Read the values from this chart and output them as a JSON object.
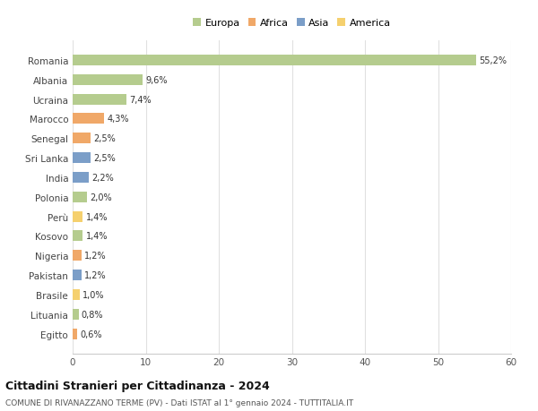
{
  "countries": [
    "Romania",
    "Albania",
    "Ucraina",
    "Marocco",
    "Senegal",
    "Sri Lanka",
    "India",
    "Polonia",
    "Perù",
    "Kosovo",
    "Nigeria",
    "Pakistan",
    "Brasile",
    "Lituania",
    "Egitto"
  ],
  "values": [
    55.2,
    9.6,
    7.4,
    4.3,
    2.5,
    2.5,
    2.2,
    2.0,
    1.4,
    1.4,
    1.2,
    1.2,
    1.0,
    0.8,
    0.6
  ],
  "labels": [
    "55,2%",
    "9,6%",
    "7,4%",
    "4,3%",
    "2,5%",
    "2,5%",
    "2,2%",
    "2,0%",
    "1,4%",
    "1,4%",
    "1,2%",
    "1,2%",
    "1,0%",
    "0,8%",
    "0,6%"
  ],
  "colors": [
    "#b5cc8e",
    "#b5cc8e",
    "#b5cc8e",
    "#f0a868",
    "#f0a868",
    "#7b9ec8",
    "#7b9ec8",
    "#b5cc8e",
    "#f5d06e",
    "#b5cc8e",
    "#f0a868",
    "#7b9ec8",
    "#f5d06e",
    "#b5cc8e",
    "#f0a868"
  ],
  "legend_labels": [
    "Europa",
    "Africa",
    "Asia",
    "America"
  ],
  "legend_colors": [
    "#b5cc8e",
    "#f0a868",
    "#7b9ec8",
    "#f5d06e"
  ],
  "title": "Cittadini Stranieri per Cittadinanza - 2024",
  "subtitle": "COMUNE DI RIVANAZZANO TERME (PV) - Dati ISTAT al 1° gennaio 2024 - TUTTITALIA.IT",
  "xlim": [
    0,
    60
  ],
  "xticks": [
    0,
    10,
    20,
    30,
    40,
    50,
    60
  ],
  "bg_color": "#ffffff",
  "grid_color": "#e0e0e0",
  "bar_height": 0.55
}
